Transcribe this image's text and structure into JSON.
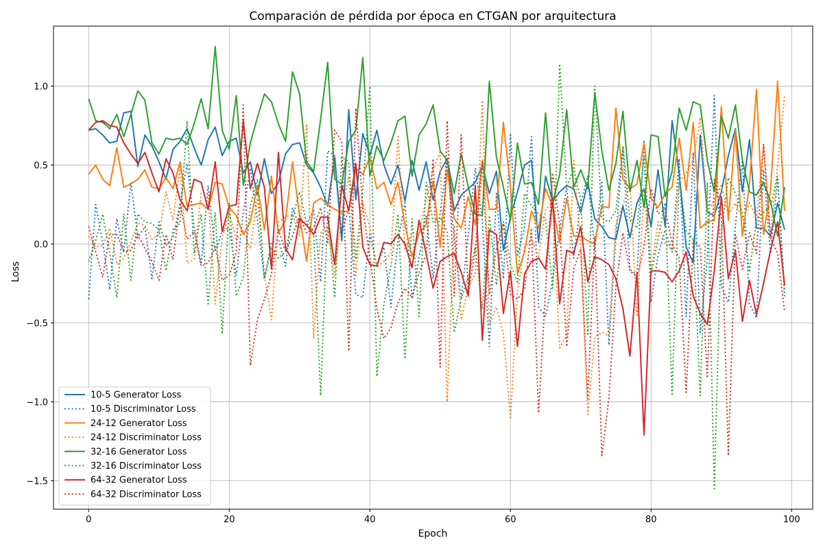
{
  "chart_data": {
    "type": "line",
    "title": "Comparación de pérdida por época en CTGAN por arquitectura",
    "xlabel": "Epoch",
    "ylabel": "Loss",
    "xlim": [
      -5,
      103
    ],
    "ylim": [
      -1.68,
      1.38
    ],
    "xticks": [
      0,
      20,
      40,
      60,
      80,
      100
    ],
    "yticks": [
      -1.5,
      -1.0,
      -0.5,
      0.0,
      0.5,
      1.0
    ],
    "xtick_labels": [
      "0",
      "20",
      "40",
      "60",
      "80",
      "100"
    ],
    "ytick_labels": [
      "−1.5",
      "−1.0",
      "−0.5",
      "0.0",
      "0.5",
      "1.0"
    ],
    "grid": true,
    "legend_position": "lower-left",
    "series": [
      {
        "name": "10-5 Generator Loss",
        "color": "#1f77b4",
        "style": "solid",
        "values": [
          0.72,
          0.73,
          0.69,
          0.64,
          0.65,
          0.83,
          0.84,
          0.49,
          0.69,
          0.62,
          0.52,
          0.41,
          0.6,
          0.65,
          0.73,
          0.61,
          0.5,
          0.66,
          0.74,
          0.56,
          0.65,
          0.67,
          0.45,
          0.52,
          0.31,
          0.54,
          0.32,
          0.39,
          0.57,
          0.63,
          0.64,
          0.5,
          0.45,
          0.36,
          0.24,
          0.55,
          0.02,
          0.85,
          0.28,
          0.7,
          0.56,
          0.72,
          0.5,
          0.38,
          0.5,
          0.27,
          0.53,
          0.34,
          0.52,
          0.28,
          0.46,
          0.54,
          0.21,
          0.31,
          0.35,
          0.39,
          0.5,
          0.32,
          0.46,
          -0.04,
          0.17,
          0.33,
          0.5,
          0.53,
          0.01,
          0.43,
          0.27,
          0.33,
          0.37,
          0.35,
          0.2,
          0.39,
          0.16,
          0.11,
          0.04,
          0.03,
          0.24,
          0.04,
          0.26,
          0.35,
          0.11,
          0.47,
          0.11,
          0.78,
          0.45,
          -0.02,
          -0.12,
          0.69,
          0.2,
          0.18,
          0.33,
          0.56,
          0.73,
          0.33,
          0.66,
          0.1,
          0.1,
          0.05,
          0.26,
          0.09
        ]
      },
      {
        "name": "10-5 Discriminator Loss",
        "color": "#1f77b4",
        "style": "dotted",
        "values": [
          -0.35,
          0.25,
          0.01,
          -0.29,
          0.16,
          -0.05,
          0.39,
          0.04,
          0.11,
          -0.22,
          0.14,
          -0.01,
          0.04,
          0.25,
          0.51,
          0.11,
          -0.13,
          0.37,
          -0.05,
          0.08,
          0.1,
          -0.2,
          0.2,
          0.48,
          0.15,
          -0.22,
          0.01,
          0.03,
          -0.14,
          0.23,
          0.11,
          0.12,
          0.22,
          -0.24,
          0.59,
          0.56,
          0.06,
          0.23,
          -0.32,
          -0.34,
          0.06,
          -0.14,
          -0.02,
          -0.4,
          0.02,
          0.26,
          -0.35,
          -0.09,
          0.18,
          -0.22,
          0.2,
          0.52,
          0.03,
          -0.35,
          0.06,
          0.48,
          0.15,
          -0.65,
          0.32,
          -0.22,
          0.7,
          -0.07,
          0.1,
          0.68,
          -0.4,
          -0.46,
          -0.23,
          0.09,
          0.36,
          -0.09,
          0.26,
          0.43,
          -0.04,
          0.4,
          -0.64,
          0.05,
          0.61,
          -0.16,
          -0.2,
          0.66,
          -0.37,
          -0.07,
          0.09,
          -0.05,
          0.54,
          -0.46,
          0.58,
          -0.56,
          -0.09,
          0.94,
          -0.27,
          -0.37,
          0.12,
          0.53,
          -0.38,
          -0.47,
          0.47,
          -0.06,
          0.42,
          -0.31
        ]
      },
      {
        "name": "24-12 Generator Loss",
        "color": "#ff7f0e",
        "style": "solid",
        "values": [
          0.44,
          0.5,
          0.41,
          0.37,
          0.61,
          0.36,
          0.38,
          0.41,
          0.47,
          0.36,
          0.35,
          0.42,
          0.35,
          0.52,
          0.24,
          0.25,
          0.26,
          0.22,
          0.39,
          0.38,
          0.23,
          0.18,
          0.06,
          0.14,
          0.37,
          0.09,
          0.43,
          0.07,
          0.15,
          0.52,
          0.18,
          -0.11,
          0.26,
          0.29,
          0.25,
          0.22,
          0.2,
          0.21,
          0.48,
          0.44,
          0.55,
          0.35,
          0.39,
          0.25,
          0.39,
          0.12,
          -0.08,
          0.07,
          0.12,
          0.4,
          -0.02,
          0.47,
          0.16,
          0.1,
          0.3,
          0.12,
          0.53,
          0.22,
          0.22,
          0.77,
          0.36,
          -0.19,
          -0.05,
          0.21,
          0.1,
          0.35,
          0.24,
          0.01,
          0.29,
          0.05,
          0.05,
          0.02,
          0.0,
          0.24,
          0.23,
          0.86,
          0.41,
          0.35,
          0.38,
          0.64,
          0.29,
          0.23,
          0.32,
          0.36,
          0.67,
          0.34,
          0.77,
          0.1,
          0.14,
          0.15,
          0.87,
          0.15,
          0.72,
          0.05,
          0.38,
          0.98,
          0.06,
          0.34,
          1.03,
          0.21
        ]
      },
      {
        "name": "24-12 Discriminator Loss",
        "color": "#ff7f0e",
        "style": "dotted",
        "values": [
          0.05,
          -0.02,
          -0.01,
          0.1,
          -0.13,
          -0.09,
          0.01,
          0.13,
          0.12,
          0.03,
          0.06,
          0.33,
          0.15,
          0.49,
          -0.12,
          -0.1,
          0.32,
          0.31,
          -0.38,
          0.04,
          0.2,
          0.03,
          0.08,
          -0.03,
          0.29,
          -0.2,
          -0.48,
          0.14,
          0.17,
          0.19,
          0.05,
          0.76,
          -0.6,
          0.07,
          0.11,
          -0.2,
          0.21,
          0.43,
          -0.2,
          0.26,
          0.11,
          -0.15,
          -0.11,
          -0.06,
          0.68,
          -0.04,
          0.07,
          0.08,
          0.28,
          0.48,
          0.58,
          -1.0,
          0.12,
          -0.48,
          -0.27,
          -0.19,
          0.91,
          -0.51,
          -0.4,
          -0.57,
          -1.11,
          -0.3,
          -0.02,
          0.03,
          -0.08,
          0.22,
          0.26,
          -0.66,
          -0.58,
          0.54,
          -0.03,
          -1.08,
          -0.59,
          -0.56,
          -0.58,
          0.12,
          0.25,
          0.38,
          -0.46,
          0.35,
          -0.18,
          0.14,
          0.01,
          -0.04,
          0.39,
          0.45,
          0.53,
          0.8,
          0.2,
          0.28,
          0.37,
          0.18,
          0.26,
          0.16,
          0.26,
          0.17,
          0.63,
          0.04,
          0.5,
          0.94
        ]
      },
      {
        "name": "32-16 Generator Loss",
        "color": "#2ca02c",
        "style": "solid",
        "values": [
          0.92,
          0.78,
          0.77,
          0.73,
          0.82,
          0.68,
          0.82,
          0.97,
          0.91,
          0.64,
          0.57,
          0.67,
          0.66,
          0.67,
          0.63,
          0.76,
          0.92,
          0.73,
          1.25,
          0.72,
          0.6,
          0.94,
          0.37,
          0.64,
          0.8,
          0.95,
          0.9,
          0.76,
          0.65,
          1.09,
          0.95,
          0.52,
          0.46,
          0.79,
          1.15,
          0.41,
          0.38,
          0.65,
          0.72,
          1.18,
          0.43,
          0.62,
          0.53,
          0.64,
          0.78,
          0.81,
          0.43,
          0.69,
          0.76,
          0.88,
          0.59,
          0.53,
          0.32,
          0.57,
          0.36,
          0.19,
          0.18,
          1.03,
          0.55,
          0.36,
          0.15,
          0.64,
          0.38,
          0.39,
          0.25,
          0.83,
          0.26,
          0.44,
          0.85,
          0.36,
          0.47,
          0.35,
          0.96,
          0.59,
          0.34,
          0.51,
          0.84,
          0.33,
          0.53,
          0.23,
          0.69,
          0.68,
          0.3,
          0.46,
          0.86,
          0.72,
          0.9,
          0.88,
          0.53,
          0.33,
          0.81,
          0.67,
          0.88,
          0.53,
          0.33,
          0.31,
          0.39,
          0.27,
          0.05,
          0.36
        ]
      },
      {
        "name": "32-16 Discriminator Loss",
        "color": "#2ca02c",
        "style": "dotted",
        "values": [
          -0.11,
          0.02,
          0.19,
          -0.06,
          -0.34,
          0.19,
          -0.23,
          0.19,
          0.14,
          0.13,
          0.09,
          -0.17,
          0.09,
          0.13,
          0.78,
          -0.06,
          0.19,
          -0.39,
          0.2,
          -0.57,
          0.26,
          -0.33,
          -0.21,
          0.24,
          0.41,
          -0.22,
          -0.02,
          -0.09,
          -0.05,
          0.17,
          0.33,
          0.13,
          0.08,
          -0.96,
          0.2,
          -0.34,
          0.55,
          0.52,
          -0.1,
          0.34,
          1.0,
          -0.84,
          -0.38,
          -0.14,
          0.19,
          -0.73,
          0.16,
          -0.46,
          0.39,
          0.14,
          0.17,
          0.08,
          -0.56,
          -0.35,
          -0.21,
          -0.02,
          -0.41,
          0.18,
          -0.26,
          0.14,
          -0.13,
          -0.24,
          0.32,
          0.24,
          0.19,
          0.16,
          -0.28,
          1.14,
          0.36,
          0.48,
          0.28,
          -0.57,
          1.0,
          0.16,
          0.14,
          0.21,
          0.62,
          0.15,
          0.1,
          0.55,
          -0.19,
          0.03,
          0.26,
          -0.95,
          0.43,
          0.08,
          0.03,
          -0.96,
          0.39,
          -1.55,
          0.08,
          0.42,
          0.32,
          0.2,
          -0.18,
          0.16,
          0.2,
          0.24,
          0.43,
          -0.34
        ]
      },
      {
        "name": "64-32 Generator Loss",
        "color": "#d62728",
        "style": "solid",
        "values": [
          0.72,
          0.77,
          0.78,
          0.75,
          0.74,
          0.64,
          0.57,
          0.51,
          0.58,
          0.45,
          0.33,
          0.54,
          0.45,
          0.28,
          0.21,
          0.41,
          0.39,
          0.22,
          0.52,
          0.08,
          0.24,
          0.25,
          0.78,
          0.35,
          0.51,
          0.36,
          -0.16,
          0.58,
          -0.03,
          -0.1,
          0.16,
          0.12,
          0.06,
          0.17,
          0.17,
          -0.13,
          0.37,
          0.21,
          0.51,
          -0.02,
          -0.13,
          -0.14,
          0.01,
          0.0,
          0.06,
          0.0,
          -0.15,
          0.15,
          -0.06,
          -0.28,
          -0.11,
          -0.08,
          -0.06,
          -0.18,
          -0.33,
          0.37,
          -0.61,
          0.09,
          0.06,
          -0.44,
          -0.17,
          -0.65,
          -0.19,
          -0.11,
          -0.09,
          -0.16,
          0.29,
          -0.38,
          -0.04,
          -0.06,
          0.11,
          -0.24,
          -0.08,
          -0.1,
          -0.13,
          -0.22,
          -0.41,
          -0.71,
          -0.18,
          -1.21,
          -0.17,
          -0.17,
          -0.18,
          -0.24,
          -0.17,
          -0.05,
          -0.33,
          -0.44,
          -0.51,
          -0.17,
          0.3,
          -0.22,
          -0.04,
          -0.49,
          -0.23,
          -0.45,
          -0.25,
          -0.04,
          0.14,
          -0.26
        ]
      },
      {
        "name": "64-32 Discriminator Loss",
        "color": "#d62728",
        "style": "dotted",
        "values": [
          0.11,
          -0.05,
          -0.21,
          0.06,
          0.06,
          -0.05,
          -0.04,
          0.06,
          -0.03,
          -0.11,
          -0.23,
          0.06,
          -0.1,
          0.26,
          0.03,
          0.08,
          -0.14,
          -0.12,
          -0.02,
          -0.23,
          -0.2,
          -0.05,
          0.88,
          -0.77,
          -0.48,
          -0.35,
          -0.19,
          0.09,
          -0.05,
          0.05,
          0.18,
          0.07,
          0.1,
          0.23,
          0.01,
          0.72,
          0.65,
          -0.68,
          0.86,
          0.23,
          -0.09,
          -0.41,
          -0.6,
          -0.53,
          -0.37,
          -0.28,
          -0.34,
          -0.18,
          -0.07,
          0.54,
          -0.78,
          0.78,
          -0.33,
          0.69,
          -0.31,
          -0.04,
          0.52,
          -0.32,
          -0.03,
          0.13,
          -0.32,
          -0.35,
          -0.29,
          0.1,
          -1.07,
          -0.29,
          0.45,
          0.12,
          -0.65,
          -0.16,
          -0.03,
          -0.98,
          0.05,
          -1.34,
          -0.98,
          -0.27,
          0.07,
          -0.17,
          -0.21,
          -0.02,
          0.35,
          0.19,
          0.22,
          0.0,
          -0.09,
          -0.94,
          0.02,
          -0.02,
          -0.85,
          0.41,
          0.17,
          -1.34,
          0.06,
          -0.16,
          0.07,
          -0.06,
          0.63,
          0.04,
          -0.06,
          -0.43
        ]
      }
    ]
  }
}
